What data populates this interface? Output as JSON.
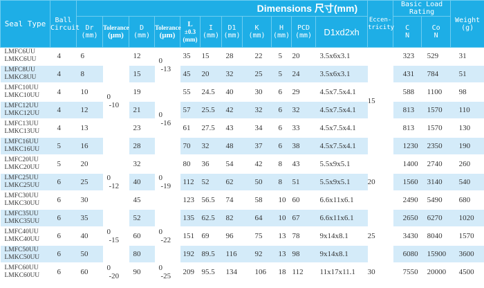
{
  "header": {
    "dimensions": "Dimensions 尺寸(mm)",
    "seal_type": "Seal Type",
    "ball_circuit": [
      "Ball",
      "Circuit"
    ],
    "dr": [
      "Dr",
      "(mm)"
    ],
    "tol1": [
      "Tolerance",
      "(μm)"
    ],
    "d": [
      "D",
      "(mm)"
    ],
    "tol2": [
      "Tolerance",
      "(μm)"
    ],
    "l": [
      "L",
      "±0.3",
      "(mm)"
    ],
    "i": [
      "I",
      "(mm)"
    ],
    "d1": [
      "D1",
      "(mm)"
    ],
    "k": [
      "K",
      "(mm)"
    ],
    "h": [
      "H",
      "(mm)"
    ],
    "pcd": [
      "PCD",
      "(mm)"
    ],
    "d1d2h": "D1xd2xh",
    "eccentricity": [
      "Eccen-",
      "tricity"
    ],
    "basic_load": [
      "Basic Load",
      "Rating"
    ],
    "c": [
      "C",
      "N"
    ],
    "co": [
      "Co",
      "N"
    ],
    "weight": [
      "Weight",
      "(g)"
    ]
  },
  "rows": [
    {
      "fc": "LMFC6UU",
      "kc": "LMKC6UU",
      "ball": "4",
      "dr": "6",
      "d": "12",
      "l": "35",
      "i": "15",
      "d1": "28",
      "k": "22",
      "h": "5",
      "pcd": "20",
      "bolt": "3.5x6x3.1",
      "c": "323",
      "co": "529",
      "w": "31"
    },
    {
      "fc": "LMFC8UU",
      "kc": "LMKC8UU",
      "ball": "4",
      "dr": "8",
      "d": "15",
      "l": "45",
      "i": "20",
      "d1": "32",
      "k": "25",
      "h": "5",
      "pcd": "24",
      "bolt": "3.5x6x3.1",
      "c": "431",
      "co": "784",
      "w": "51"
    },
    {
      "fc": "LMFC10UU",
      "kc": "LMKC10UU",
      "ball": "4",
      "dr": "10",
      "d": "19",
      "l": "55",
      "i": "24.5",
      "d1": "40",
      "k": "30",
      "h": "6",
      "pcd": "29",
      "bolt": "4.5x7.5x4.1",
      "c": "588",
      "co": "1100",
      "w": "98"
    },
    {
      "fc": "LMFC12UU",
      "kc": "LMKC12UU",
      "ball": "4",
      "dr": "12",
      "d": "21",
      "l": "57",
      "i": "25.5",
      "d1": "42",
      "k": "32",
      "h": "6",
      "pcd": "32",
      "bolt": "4.5x7.5x4.1",
      "c": "813",
      "co": "1570",
      "w": "110"
    },
    {
      "fc": "LMFC13UU",
      "kc": "LMKC13UU",
      "ball": "4",
      "dr": "13",
      "d": "23",
      "l": "61",
      "i": "27.5",
      "d1": "43",
      "k": "34",
      "h": "6",
      "pcd": "33",
      "bolt": "4.5x7.5x4.1",
      "c": "813",
      "co": "1570",
      "w": "130"
    },
    {
      "fc": "LMFC16UU",
      "kc": "LMKC16UU",
      "ball": "5",
      "dr": "16",
      "d": "28",
      "l": "70",
      "i": "32",
      "d1": "48",
      "k": "37",
      "h": "6",
      "pcd": "38",
      "bolt": "4.5x7.5x4.1",
      "c": "1230",
      "co": "2350",
      "w": "190"
    },
    {
      "fc": "LMFC20UU",
      "kc": "LMKC20UU",
      "ball": "5",
      "dr": "20",
      "d": "32",
      "l": "80",
      "i": "36",
      "d1": "54",
      "k": "42",
      "h": "8",
      "pcd": "43",
      "bolt": "5.5x9x5.1",
      "c": "1400",
      "co": "2740",
      "w": "260"
    },
    {
      "fc": "LMFC25UU",
      "kc": "LMKC25UU",
      "ball": "6",
      "dr": "25",
      "d": "40",
      "l": "112",
      "i": "52",
      "d1": "62",
      "k": "50",
      "h": "8",
      "pcd": "51",
      "bolt": "5.5x9x5.1",
      "c": "1560",
      "co": "3140",
      "w": "540"
    },
    {
      "fc": "LMFC30UU",
      "kc": "LMKC30UU",
      "ball": "6",
      "dr": "30",
      "d": "45",
      "l": "123",
      "i": "56.5",
      "d1": "74",
      "k": "58",
      "h": "10",
      "pcd": "60",
      "bolt": "6.6x11x6.1",
      "c": "2490",
      "co": "5490",
      "w": "680"
    },
    {
      "fc": "LMFC35UU",
      "kc": "LMKC35UU",
      "ball": "6",
      "dr": "35",
      "d": "52",
      "l": "135",
      "i": "62.5",
      "d1": "82",
      "k": "64",
      "h": "10",
      "pcd": "67",
      "bolt": "6.6x11x6.1",
      "c": "2650",
      "co": "6270",
      "w": "1020"
    },
    {
      "fc": "LMFC40UU",
      "kc": "LMKC40UU",
      "ball": "6",
      "dr": "40",
      "d": "60",
      "l": "151",
      "i": "69",
      "d1": "96",
      "k": "75",
      "h": "13",
      "pcd": "78",
      "bolt": "9x14x8.1",
      "c": "3430",
      "co": "8040",
      "w": "1570"
    },
    {
      "fc": "LMFC50UU",
      "kc": "LMKC50UU",
      "ball": "6",
      "dr": "50",
      "d": "80",
      "l": "192",
      "i": "89.5",
      "d1": "116",
      "k": "92",
      "h": "13",
      "pcd": "98",
      "bolt": "9x14x8.1",
      "c": "6080",
      "co": "15900",
      "w": "3600"
    },
    {
      "fc": "LMFC60UU",
      "kc": "LMKC60UU",
      "ball": "6",
      "dr": "60",
      "d": "90",
      "l": "209",
      "i": "95.5",
      "d1": "134",
      "k": "106",
      "h": "18",
      "pcd": "112",
      "bolt": "11x17x11.1",
      "c": "7550",
      "co": "20000",
      "w": "4500"
    }
  ],
  "dr_tolerance": [
    {
      "start": 0,
      "span": 6,
      "upper": "0",
      "lower": "-10"
    },
    {
      "start": 6,
      "span": 3,
      "upper": "0",
      "lower": "-12"
    },
    {
      "start": 9,
      "span": 3,
      "upper": "0",
      "lower": "-15"
    },
    {
      "start": 12,
      "span": 1,
      "upper": "0",
      "lower": "-20"
    }
  ],
  "d_tolerance": [
    {
      "start": 0,
      "span": 2,
      "upper": "0",
      "lower": "-13"
    },
    {
      "start": 2,
      "span": 4,
      "upper": "0",
      "lower": "-16"
    },
    {
      "start": 6,
      "span": 3,
      "upper": "0",
      "lower": "-19"
    },
    {
      "start": 9,
      "span": 3,
      "upper": "0",
      "lower": "-22"
    },
    {
      "start": 12,
      "span": 1,
      "upper": "0",
      "lower": "-25"
    }
  ],
  "eccentricity": [
    {
      "start": 0,
      "span": 6,
      "value": "15"
    },
    {
      "start": 6,
      "span": 3,
      "value": "20"
    },
    {
      "start": 9,
      "span": 3,
      "value": "25"
    },
    {
      "start": 12,
      "span": 1,
      "value": "30"
    }
  ]
}
